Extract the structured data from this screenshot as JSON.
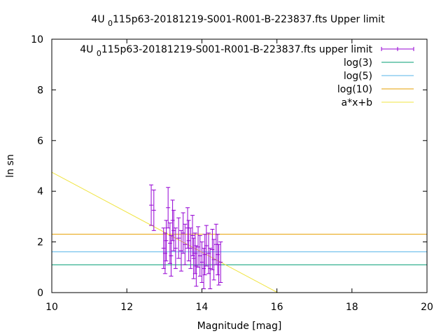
{
  "chart_data": {
    "type": "scatter",
    "title": {
      "prefix": "4U ",
      "sub": "0",
      "rest": "115p63-20181219-S001-R001-B-223837.fts Upper limit"
    },
    "xlabel": "Magnitude [mag]",
    "ylabel": "ln sn",
    "xlim": [
      10,
      20
    ],
    "ylim": [
      0,
      10
    ],
    "xticks": [
      10,
      12,
      14,
      16,
      18,
      20
    ],
    "yticks": [
      0,
      2,
      4,
      6,
      8,
      10
    ],
    "grid": false,
    "legend_position": "top-right",
    "legend": [
      {
        "label": {
          "prefix": "4U ",
          "sub": "0",
          "rest": "115p63-20181219-S001-R001-B-223837.fts upper limit"
        },
        "color": "#9400d3",
        "kind": "errorbar"
      },
      {
        "label": "log(3)",
        "color": "#009e73",
        "kind": "line"
      },
      {
        "label": "log(5)",
        "color": "#56b4e9",
        "kind": "line"
      },
      {
        "label": "log(10)",
        "color": "#e69f00",
        "kind": "line"
      },
      {
        "label": "a*x+b",
        "color": "#f0e442",
        "kind": "line"
      }
    ],
    "hlines": [
      {
        "name": "log(3)",
        "y": 1.0986,
        "color": "#009e73"
      },
      {
        "name": "log(5)",
        "y": 1.6094,
        "color": "#56b4e9"
      },
      {
        "name": "log(10)",
        "y": 2.3026,
        "color": "#e69f00"
      }
    ],
    "fit_line": {
      "name": "a*x+b",
      "x": [
        10,
        16.02
      ],
      "y": [
        4.75,
        0
      ],
      "color": "#f0e442"
    },
    "series": [
      {
        "name": "upper limit",
        "color": "#9400d3",
        "err": 0.8,
        "points": [
          [
            12.65,
            3.45
          ],
          [
            12.72,
            3.25
          ],
          [
            12.98,
            1.75
          ],
          [
            13.02,
            1.55
          ],
          [
            13.05,
            2.05
          ],
          [
            13.1,
            3.35
          ],
          [
            13.15,
            1.95
          ],
          [
            13.18,
            1.45
          ],
          [
            13.22,
            2.85
          ],
          [
            13.25,
            2.45
          ],
          [
            13.3,
            1.75
          ],
          [
            13.38,
            2.15
          ],
          [
            13.45,
            1.65
          ],
          [
            13.5,
            2.35
          ],
          [
            13.55,
            1.9
          ],
          [
            13.62,
            2.55
          ],
          [
            13.65,
            2.05
          ],
          [
            13.7,
            1.75
          ],
          [
            13.75,
            2.25
          ],
          [
            13.78,
            1.35
          ],
          [
            13.82,
            1.55
          ],
          [
            13.85,
            1.05
          ],
          [
            13.9,
            1.8
          ],
          [
            13.95,
            1.45
          ],
          [
            14.0,
            1.2
          ],
          [
            14.05,
            0.95
          ],
          [
            14.08,
            1.5
          ],
          [
            14.12,
            1.85
          ],
          [
            14.18,
            1.55
          ],
          [
            14.22,
            0.95
          ],
          [
            14.28,
            1.7
          ],
          [
            14.32,
            1.3
          ],
          [
            14.38,
            1.9
          ],
          [
            14.42,
            1.5
          ],
          [
            14.45,
            1.1
          ],
          [
            14.5,
            1.2
          ]
        ]
      }
    ]
  }
}
